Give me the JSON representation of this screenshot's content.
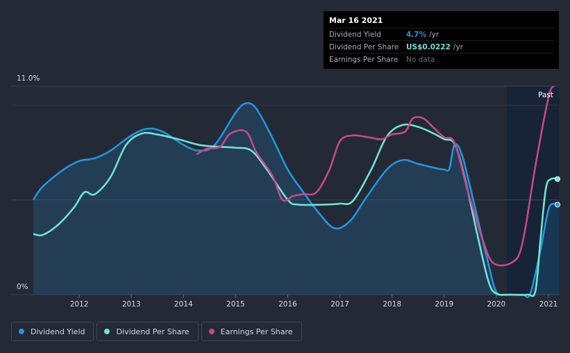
{
  "tooltip": {
    "date": "Mar 16 2021",
    "rows": [
      {
        "label": "Dividend Yield",
        "value": "4.7%",
        "unit": "/yr",
        "color": "#2394df"
      },
      {
        "label": "Dividend Per Share",
        "value": "US$0.0222",
        "unit": "/yr",
        "color": "#6fe3d4"
      },
      {
        "label": "Earnings Per Share",
        "value": "No data",
        "unit": "",
        "color": "#6b717b"
      }
    ]
  },
  "legend": [
    {
      "label": "Dividend Yield",
      "color": "#2394df"
    },
    {
      "label": "Dividend Per Share",
      "color": "#6fe3d4"
    },
    {
      "label": "Earnings Per Share",
      "color": "#c7478c"
    }
  ],
  "chart_data": {
    "type": "line",
    "ylabel_top": "11.0%",
    "ylabel_bottom": "0%",
    "past_label": "Past",
    "x_ticks": [
      "2012",
      "2013",
      "2014",
      "2015",
      "2016",
      "2017",
      "2018",
      "2019",
      "2020",
      "2021"
    ],
    "xlim": [
      2011.12,
      2021.2
    ],
    "ylim": [
      0,
      11.0
    ],
    "past_start": 2020.2,
    "grid": true,
    "series": [
      {
        "name": "Dividend Yield",
        "color": "#2394df",
        "fill": true,
        "points": [
          [
            2011.12,
            5.0
          ],
          [
            2011.3,
            5.7
          ],
          [
            2011.7,
            6.6
          ],
          [
            2012.0,
            7.05
          ],
          [
            2012.3,
            7.2
          ],
          [
            2012.6,
            7.6
          ],
          [
            2013.0,
            8.4
          ],
          [
            2013.3,
            8.75
          ],
          [
            2013.6,
            8.6
          ],
          [
            2014.0,
            7.9
          ],
          [
            2014.3,
            7.6
          ],
          [
            2014.6,
            7.9
          ],
          [
            2015.0,
            9.6
          ],
          [
            2015.2,
            10.1
          ],
          [
            2015.4,
            9.8
          ],
          [
            2015.7,
            8.3
          ],
          [
            2016.0,
            6.6
          ],
          [
            2016.3,
            5.4
          ],
          [
            2016.6,
            4.3
          ],
          [
            2016.9,
            3.5
          ],
          [
            2017.2,
            3.9
          ],
          [
            2017.5,
            5.1
          ],
          [
            2017.9,
            6.6
          ],
          [
            2018.2,
            7.1
          ],
          [
            2018.5,
            6.9
          ],
          [
            2018.8,
            6.7
          ],
          [
            2019.0,
            6.6
          ],
          [
            2019.1,
            6.65
          ],
          [
            2019.2,
            7.9
          ],
          [
            2019.35,
            7.3
          ],
          [
            2019.6,
            4.5
          ],
          [
            2019.85,
            1.6
          ],
          [
            2020.0,
            0.15
          ],
          [
            2020.2,
            0.0
          ],
          [
            2020.5,
            0.0
          ],
          [
            2020.65,
            0.05
          ],
          [
            2020.85,
            2.4
          ],
          [
            2021.0,
            4.5
          ],
          [
            2021.12,
            4.8
          ],
          [
            2021.2,
            4.75
          ]
        ]
      },
      {
        "name": "Dividend Per Share",
        "color": "#6fe3d4",
        "fill": false,
        "points": [
          [
            2011.12,
            3.2
          ],
          [
            2011.3,
            3.15
          ],
          [
            2011.6,
            3.7
          ],
          [
            2011.9,
            4.6
          ],
          [
            2012.1,
            5.4
          ],
          [
            2012.3,
            5.3
          ],
          [
            2012.6,
            6.2
          ],
          [
            2012.9,
            7.9
          ],
          [
            2013.2,
            8.5
          ],
          [
            2013.5,
            8.45
          ],
          [
            2013.9,
            8.2
          ],
          [
            2014.3,
            7.9
          ],
          [
            2014.7,
            7.8
          ],
          [
            2015.0,
            7.75
          ],
          [
            2015.3,
            7.6
          ],
          [
            2015.6,
            6.6
          ],
          [
            2016.0,
            5.0
          ],
          [
            2016.2,
            4.75
          ],
          [
            2016.7,
            4.75
          ],
          [
            2017.0,
            4.8
          ],
          [
            2017.25,
            4.95
          ],
          [
            2017.6,
            6.6
          ],
          [
            2017.9,
            8.35
          ],
          [
            2018.2,
            8.95
          ],
          [
            2018.5,
            8.85
          ],
          [
            2018.8,
            8.5
          ],
          [
            2019.0,
            8.2
          ],
          [
            2019.2,
            7.95
          ],
          [
            2019.4,
            6.1
          ],
          [
            2019.65,
            3.0
          ],
          [
            2019.85,
            0.7
          ],
          [
            2020.0,
            0.05
          ],
          [
            2020.3,
            0.0
          ],
          [
            2020.6,
            0.0
          ],
          [
            2020.75,
            0.2
          ],
          [
            2020.85,
            3.0
          ],
          [
            2020.95,
            5.6
          ],
          [
            2021.05,
            6.1
          ],
          [
            2021.2,
            6.1
          ]
        ]
      },
      {
        "name": "Earnings Per Share",
        "color": "#c7478c",
        "fill": false,
        "points": [
          [
            2014.25,
            7.4
          ],
          [
            2014.45,
            7.7
          ],
          [
            2014.7,
            7.8
          ],
          [
            2014.9,
            8.5
          ],
          [
            2015.2,
            8.6
          ],
          [
            2015.4,
            7.5
          ],
          [
            2015.7,
            6.3
          ],
          [
            2015.9,
            5.0
          ],
          [
            2016.1,
            5.2
          ],
          [
            2016.3,
            5.3
          ],
          [
            2016.55,
            5.4
          ],
          [
            2016.8,
            6.6
          ],
          [
            2017.0,
            8.1
          ],
          [
            2017.25,
            8.4
          ],
          [
            2017.55,
            8.3
          ],
          [
            2017.8,
            8.2
          ],
          [
            2018.0,
            8.45
          ],
          [
            2018.25,
            8.6
          ],
          [
            2018.4,
            9.3
          ],
          [
            2018.6,
            9.3
          ],
          [
            2018.8,
            8.8
          ],
          [
            2019.0,
            8.3
          ],
          [
            2019.2,
            8.0
          ],
          [
            2019.45,
            5.5
          ],
          [
            2019.75,
            2.8
          ],
          [
            2019.95,
            1.65
          ],
          [
            2020.3,
            1.7
          ],
          [
            2020.5,
            2.7
          ],
          [
            2020.75,
            6.8
          ],
          [
            2021.0,
            10.4
          ],
          [
            2021.1,
            11.0
          ]
        ]
      }
    ],
    "end_markers": [
      {
        "series": "Dividend Yield",
        "x": 2021.2,
        "y": 4.75
      },
      {
        "series": "Dividend Per Share",
        "x": 2021.2,
        "y": 6.1
      }
    ]
  }
}
